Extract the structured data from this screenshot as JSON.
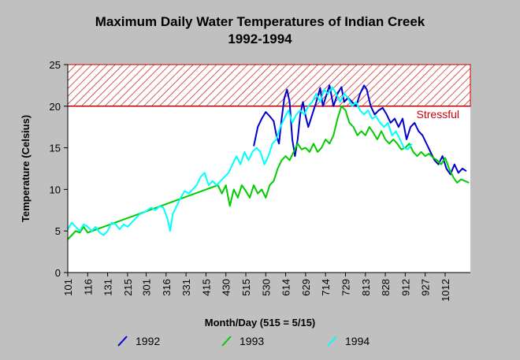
{
  "chart_data": {
    "type": "line",
    "title": "Maximum Daily Water Temperatures of Indian Creek",
    "subtitle": "1992-1994",
    "xlabel": "Month/Day (515 = 5/15)",
    "ylabel": "Temperature (Celsius)",
    "ylim": [
      0,
      25
    ],
    "yticks": [
      0,
      5,
      10,
      15,
      20,
      25
    ],
    "xlim": [
      "01-01",
      "10-31"
    ],
    "xticks": [
      {
        "label": "101",
        "date": "01-01"
      },
      {
        "label": "116",
        "date": "01-16"
      },
      {
        "label": "131",
        "date": "01-31"
      },
      {
        "label": "215",
        "date": "02-15"
      },
      {
        "label": "301",
        "date": "03-01"
      },
      {
        "label": "316",
        "date": "03-16"
      },
      {
        "label": "331",
        "date": "03-31"
      },
      {
        "label": "415",
        "date": "04-15"
      },
      {
        "label": "430",
        "date": "04-30"
      },
      {
        "label": "515",
        "date": "05-15"
      },
      {
        "label": "530",
        "date": "05-30"
      },
      {
        "label": "614",
        "date": "06-14"
      },
      {
        "label": "629",
        "date": "06-29"
      },
      {
        "label": "714",
        "date": "07-14"
      },
      {
        "label": "729",
        "date": "07-29"
      },
      {
        "label": "813",
        "date": "08-13"
      },
      {
        "label": "828",
        "date": "08-28"
      },
      {
        "label": "912",
        "date": "09-12"
      },
      {
        "label": "927",
        "date": "09-27"
      },
      {
        "label": "1012",
        "date": "10-12"
      }
    ],
    "grid": false,
    "legend_position": "bottom",
    "threshold": {
      "value": 20,
      "upper": 25,
      "label": "Stressful",
      "color": "#cc0000"
    },
    "series": [
      {
        "name": "1992",
        "color": "#0000cc",
        "points": [
          [
            "05-21",
            15.2
          ],
          [
            "05-24",
            17.5
          ],
          [
            "05-27",
            18.5
          ],
          [
            "05-30",
            19.3
          ],
          [
            "06-02",
            18.8
          ],
          [
            "06-05",
            18.2
          ],
          [
            "06-07",
            16.5
          ],
          [
            "06-09",
            15.5
          ],
          [
            "06-11",
            18.5
          ],
          [
            "06-13",
            21.0
          ],
          [
            "06-15",
            22.0
          ],
          [
            "06-17",
            20.5
          ],
          [
            "06-19",
            16.0
          ],
          [
            "06-21",
            14.0
          ],
          [
            "06-23",
            16.0
          ],
          [
            "06-25",
            19.0
          ],
          [
            "06-27",
            20.5
          ],
          [
            "06-29",
            18.8
          ],
          [
            "07-01",
            17.5
          ],
          [
            "07-04",
            19.0
          ],
          [
            "07-07",
            20.5
          ],
          [
            "07-10",
            22.2
          ],
          [
            "07-12",
            20.0
          ],
          [
            "07-14",
            21.0
          ],
          [
            "07-17",
            22.5
          ],
          [
            "07-20",
            20.0
          ],
          [
            "07-23",
            21.5
          ],
          [
            "07-26",
            22.3
          ],
          [
            "07-28",
            20.5
          ],
          [
            "07-31",
            21.0
          ],
          [
            "08-03",
            20.5
          ],
          [
            "08-06",
            20.0
          ],
          [
            "08-09",
            21.5
          ],
          [
            "08-12",
            22.5
          ],
          [
            "08-14",
            22.0
          ],
          [
            "08-17",
            20.0
          ],
          [
            "08-20",
            19.0
          ],
          [
            "08-23",
            19.5
          ],
          [
            "08-26",
            19.8
          ],
          [
            "08-29",
            19.0
          ],
          [
            "09-01",
            18.0
          ],
          [
            "09-04",
            18.5
          ],
          [
            "09-07",
            17.5
          ],
          [
            "09-10",
            18.5
          ],
          [
            "09-13",
            16.0
          ],
          [
            "09-16",
            17.5
          ],
          [
            "09-19",
            18.0
          ],
          [
            "09-22",
            17.0
          ],
          [
            "09-25",
            16.5
          ],
          [
            "09-28",
            15.5
          ],
          [
            "10-01",
            14.5
          ],
          [
            "10-04",
            13.5
          ],
          [
            "10-07",
            13.0
          ],
          [
            "10-10",
            14.0
          ],
          [
            "10-13",
            12.5
          ],
          [
            "10-16",
            11.8
          ],
          [
            "10-19",
            13.0
          ],
          [
            "10-22",
            12.0
          ],
          [
            "10-25",
            12.5
          ],
          [
            "10-28",
            12.2
          ]
        ]
      },
      {
        "name": "1993",
        "color": "#00cc00",
        "points": [
          [
            "01-01",
            4.0
          ],
          [
            "01-04",
            4.5
          ],
          [
            "01-07",
            5.0
          ],
          [
            "01-10",
            4.8
          ],
          [
            "01-13",
            5.5
          ],
          [
            "01-16",
            4.8
          ],
          [
            "04-24",
            10.5
          ],
          [
            "04-27",
            9.5
          ],
          [
            "04-30",
            10.5
          ],
          [
            "05-03",
            8.0
          ],
          [
            "05-06",
            10.0
          ],
          [
            "05-09",
            9.0
          ],
          [
            "05-12",
            10.5
          ],
          [
            "05-15",
            9.8
          ],
          [
            "05-18",
            9.0
          ],
          [
            "05-21",
            10.5
          ],
          [
            "05-24",
            9.5
          ],
          [
            "05-27",
            10.0
          ],
          [
            "05-30",
            9.0
          ],
          [
            "06-02",
            10.5
          ],
          [
            "06-05",
            11.0
          ],
          [
            "06-08",
            12.5
          ],
          [
            "06-11",
            13.5
          ],
          [
            "06-14",
            14.0
          ],
          [
            "06-17",
            13.5
          ],
          [
            "06-20",
            14.5
          ],
          [
            "06-23",
            15.5
          ],
          [
            "06-26",
            14.8
          ],
          [
            "06-29",
            15.0
          ],
          [
            "07-02",
            14.5
          ],
          [
            "07-05",
            15.5
          ],
          [
            "07-08",
            14.5
          ],
          [
            "07-11",
            15.0
          ],
          [
            "07-14",
            16.0
          ],
          [
            "07-17",
            15.5
          ],
          [
            "07-20",
            16.5
          ],
          [
            "07-23",
            18.5
          ],
          [
            "07-26",
            20.0
          ],
          [
            "07-29",
            19.5
          ],
          [
            "08-01",
            18.0
          ],
          [
            "08-04",
            17.5
          ],
          [
            "08-07",
            16.5
          ],
          [
            "08-10",
            17.0
          ],
          [
            "08-13",
            16.5
          ],
          [
            "08-16",
            17.5
          ],
          [
            "08-19",
            16.8
          ],
          [
            "08-22",
            16.0
          ],
          [
            "08-25",
            17.0
          ],
          [
            "08-28",
            16.0
          ],
          [
            "08-31",
            15.5
          ],
          [
            "09-03",
            16.0
          ],
          [
            "09-06",
            15.5
          ],
          [
            "09-09",
            14.8
          ],
          [
            "09-12",
            15.0
          ],
          [
            "09-15",
            15.5
          ],
          [
            "09-18",
            14.5
          ],
          [
            "09-21",
            14.0
          ],
          [
            "09-24",
            14.5
          ],
          [
            "09-27",
            14.0
          ],
          [
            "09-30",
            14.3
          ],
          [
            "10-03",
            13.8
          ],
          [
            "10-06",
            13.5
          ],
          [
            "10-09",
            13.0
          ],
          [
            "10-12",
            13.8
          ],
          [
            "10-15",
            12.5
          ],
          [
            "10-18",
            11.5
          ],
          [
            "10-21",
            10.8
          ],
          [
            "10-24",
            11.2
          ],
          [
            "10-27",
            11.0
          ],
          [
            "10-30",
            10.8
          ]
        ]
      },
      {
        "name": "1994",
        "color": "#00ffff",
        "points": [
          [
            "01-01",
            5.2
          ],
          [
            "01-04",
            6.0
          ],
          [
            "01-07",
            5.5
          ],
          [
            "01-10",
            5.0
          ],
          [
            "01-13",
            5.8
          ],
          [
            "01-16",
            5.5
          ],
          [
            "01-19",
            5.0
          ],
          [
            "01-22",
            5.5
          ],
          [
            "01-25",
            4.8
          ],
          [
            "01-28",
            4.5
          ],
          [
            "01-31",
            5.0
          ],
          [
            "02-03",
            6.0
          ],
          [
            "02-06",
            5.8
          ],
          [
            "02-09",
            5.2
          ],
          [
            "02-12",
            5.8
          ],
          [
            "02-15",
            5.5
          ],
          [
            "02-18",
            6.0
          ],
          [
            "02-21",
            6.5
          ],
          [
            "02-24",
            7.0
          ],
          [
            "02-27",
            7.2
          ],
          [
            "03-02",
            7.5
          ],
          [
            "03-05",
            7.8
          ],
          [
            "03-08",
            7.5
          ],
          [
            "03-11",
            8.0
          ],
          [
            "03-14",
            7.8
          ],
          [
            "03-17",
            6.5
          ],
          [
            "03-19",
            5.0
          ],
          [
            "03-21",
            7.0
          ],
          [
            "03-24",
            8.0
          ],
          [
            "03-27",
            9.0
          ],
          [
            "03-30",
            9.8
          ],
          [
            "04-02",
            9.5
          ],
          [
            "04-05",
            10.0
          ],
          [
            "04-08",
            10.5
          ],
          [
            "04-11",
            11.5
          ],
          [
            "04-14",
            12.0
          ],
          [
            "04-17",
            10.5
          ],
          [
            "04-20",
            11.0
          ],
          [
            "04-23",
            10.5
          ],
          [
            "04-26",
            11.0
          ],
          [
            "04-29",
            11.5
          ],
          [
            "05-02",
            12.0
          ],
          [
            "05-05",
            13.0
          ],
          [
            "05-08",
            14.0
          ],
          [
            "05-11",
            13.0
          ],
          [
            "05-14",
            14.5
          ],
          [
            "05-17",
            13.5
          ],
          [
            "05-20",
            14.5
          ],
          [
            "05-23",
            15.0
          ],
          [
            "05-26",
            14.5
          ],
          [
            "05-29",
            13.0
          ],
          [
            "06-01",
            14.0
          ],
          [
            "06-04",
            15.5
          ],
          [
            "06-07",
            16.0
          ],
          [
            "06-10",
            17.5
          ],
          [
            "06-13",
            18.5
          ],
          [
            "06-16",
            19.5
          ],
          [
            "06-19",
            18.0
          ],
          [
            "06-22",
            19.0
          ],
          [
            "06-25",
            19.5
          ],
          [
            "06-28",
            19.0
          ],
          [
            "07-01",
            20.0
          ],
          [
            "07-04",
            20.5
          ],
          [
            "07-07",
            21.5
          ],
          [
            "07-10",
            20.5
          ],
          [
            "07-13",
            22.0
          ],
          [
            "07-16",
            21.5
          ],
          [
            "07-19",
            22.3
          ],
          [
            "07-22",
            21.5
          ],
          [
            "07-25",
            20.5
          ],
          [
            "07-28",
            21.5
          ],
          [
            "07-31",
            21.0
          ],
          [
            "08-03",
            20.0
          ],
          [
            "08-06",
            20.5
          ],
          [
            "08-09",
            19.5
          ],
          [
            "08-12",
            19.0
          ],
          [
            "08-15",
            19.5
          ],
          [
            "08-18",
            18.5
          ],
          [
            "08-21",
            18.8
          ],
          [
            "08-24",
            18.0
          ],
          [
            "08-27",
            17.5
          ],
          [
            "08-30",
            18.0
          ],
          [
            "09-02",
            16.5
          ],
          [
            "09-05",
            17.0
          ],
          [
            "09-08",
            16.0
          ],
          [
            "09-11",
            15.0
          ],
          [
            "09-14",
            14.8
          ],
          [
            "09-17",
            15.5
          ]
        ]
      }
    ]
  }
}
